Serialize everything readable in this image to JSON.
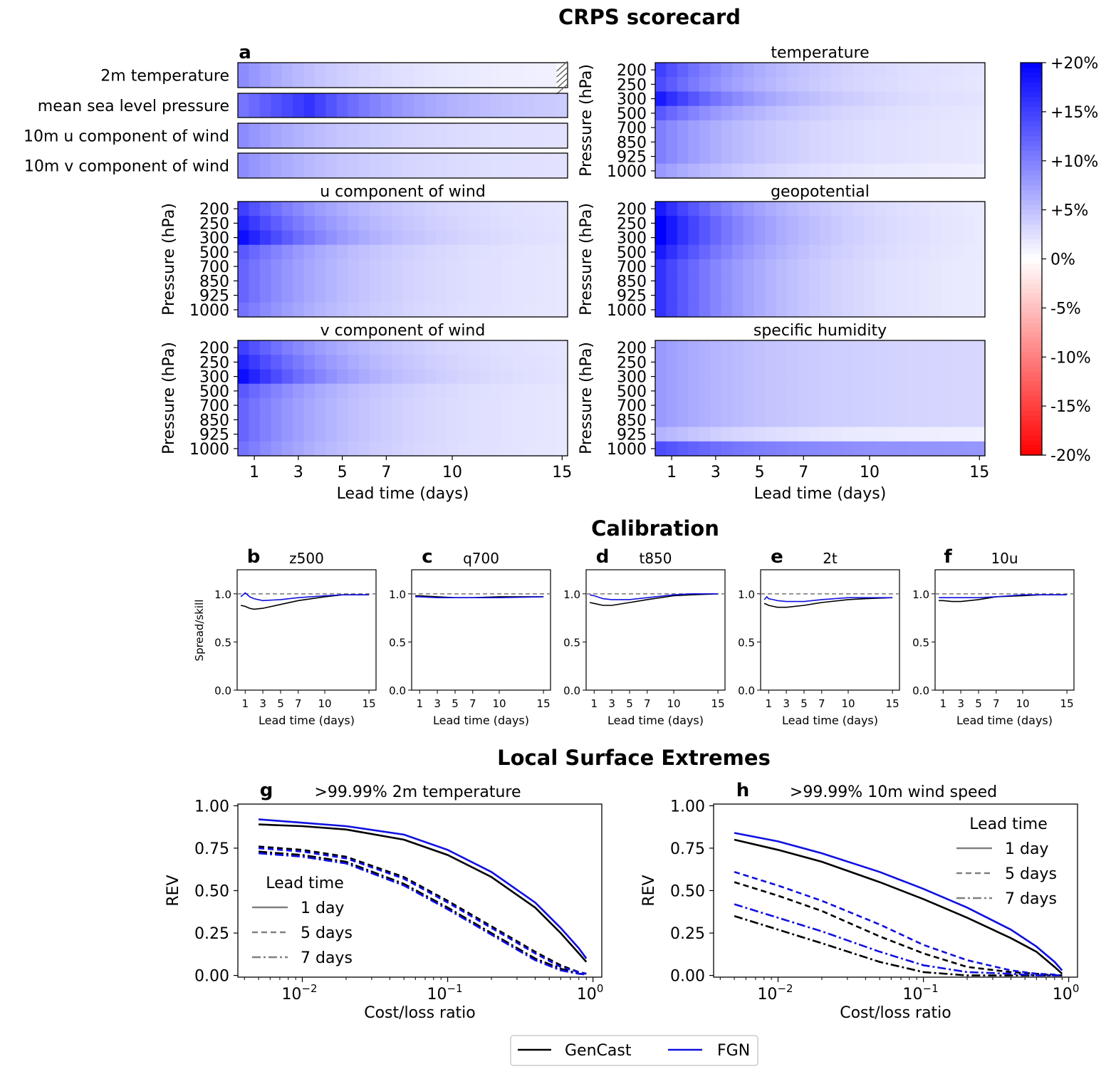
{
  "section_titles": {
    "scorecard": "CRPS scorecard",
    "calibration": "Calibration",
    "extremes": "Local Surface Extremes"
  },
  "panel_letters": {
    "a": "a",
    "b": "b",
    "c": "c",
    "d": "d",
    "e": "e",
    "f": "f",
    "g": "g",
    "h": "h"
  },
  "colors": {
    "genCast": "#000000",
    "fgn": "#1010e0",
    "positive": "#0000ff",
    "negative": "#ff0000",
    "reference": "#808080"
  },
  "chart_data": [
    {
      "type": "heatmap",
      "title": "CRPS scorecard",
      "panel": "a",
      "colorbar": {
        "min": -20,
        "max": 20,
        "ticks": [
          "+20%",
          "+15%",
          "+10%",
          "+5%",
          "0%",
          "-5%",
          "-10%",
          "-15%",
          "-20%"
        ],
        "tick_values": [
          20,
          15,
          10,
          5,
          0,
          -5,
          -10,
          -15,
          -20
        ]
      },
      "xlabel": "Lead time (days)",
      "xticks": [
        "1",
        "3",
        "5",
        "7",
        "10",
        "15"
      ],
      "xtick_values": [
        1,
        3,
        5,
        7,
        10,
        15
      ],
      "ylabel": "Pressure (hPa)",
      "levels": [
        "200",
        "250",
        "300",
        "500",
        "700",
        "850",
        "925",
        "1000"
      ],
      "surface": [
        {
          "label": "2m temperature",
          "start": 9,
          "end": 0.8,
          "hatched_last": true
        },
        {
          "label": "mean sea level pressure",
          "start": 10,
          "end": 3,
          "peak": 16,
          "peak_day": 3.5
        },
        {
          "label": "10m u component of wind",
          "start": 9,
          "end": 2
        },
        {
          "label": "10m v component of wind",
          "start": 9,
          "end": 2
        }
      ],
      "pressure": [
        {
          "title": "temperature",
          "start": [
            15,
            14,
            18,
            13,
            10,
            10,
            10,
            8
          ],
          "end": [
            1.5,
            1.5,
            1.5,
            1.5,
            1.5,
            1.5,
            1.5,
            1
          ]
        },
        {
          "title": "u component of wind",
          "start": [
            15,
            17,
            19,
            13,
            12,
            12,
            12,
            11
          ],
          "end": [
            1.5,
            1.5,
            1.5,
            1.5,
            1.5,
            1.5,
            1.5,
            1.5
          ]
        },
        {
          "title": "geopotential",
          "start": [
            18,
            20,
            20,
            18,
            16,
            16,
            16,
            16
          ],
          "end": [
            1,
            1,
            1,
            1,
            1,
            1,
            1,
            1
          ]
        },
        {
          "title": "v component of wind",
          "start": [
            15,
            17,
            19,
            13,
            12,
            12,
            12,
            11
          ],
          "end": [
            1.5,
            1.5,
            1.5,
            1.5,
            1.5,
            1.5,
            1.5,
            1.5
          ]
        },
        {
          "title": "specific humidity",
          "start": [
            8,
            8,
            8,
            8,
            8,
            8,
            6,
            14
          ],
          "end": [
            3,
            3,
            3,
            3,
            3,
            3,
            1,
            8
          ]
        }
      ]
    },
    {
      "type": "line",
      "title": "Calibration",
      "ylabel": "Spread/skill",
      "xlabel": "Lead time (days)",
      "ylim": [
        0,
        1.25
      ],
      "yticks": [
        "0.0",
        "0.5",
        "1.0"
      ],
      "ytick_values": [
        0,
        0.5,
        1.0
      ],
      "xticks": [
        "1",
        "3",
        "5",
        "7",
        "10",
        "15"
      ],
      "xtick_values": [
        1,
        3,
        5,
        7,
        10,
        15
      ],
      "reference": 1.0,
      "panels": [
        {
          "letter": "b",
          "title": "z500",
          "x": [
            0.5,
            1,
            1.5,
            2,
            3,
            5,
            7,
            10,
            12,
            15
          ],
          "gencast": [
            0.88,
            0.87,
            0.85,
            0.84,
            0.85,
            0.89,
            0.93,
            0.97,
            0.99,
            0.99
          ],
          "fgn": [
            0.97,
            1.01,
            0.97,
            0.95,
            0.93,
            0.94,
            0.96,
            0.98,
            0.99,
            0.99
          ]
        },
        {
          "letter": "c",
          "title": "q700",
          "x": [
            0.5,
            1,
            3,
            5,
            7,
            10,
            15
          ],
          "gencast": [
            0.98,
            0.98,
            0.97,
            0.96,
            0.96,
            0.97,
            0.97
          ],
          "fgn": [
            0.97,
            0.97,
            0.96,
            0.96,
            0.96,
            0.96,
            0.97
          ]
        },
        {
          "letter": "d",
          "title": "t850",
          "x": [
            0.5,
            1,
            2,
            3,
            5,
            7,
            10,
            12,
            15
          ],
          "gencast": [
            0.91,
            0.9,
            0.88,
            0.88,
            0.91,
            0.94,
            0.98,
            0.99,
            1.0
          ],
          "fgn": [
            0.99,
            0.98,
            0.95,
            0.94,
            0.94,
            0.96,
            0.99,
            1.0,
            1.0
          ]
        },
        {
          "letter": "e",
          "title": "2t",
          "x": [
            0.5,
            0.8,
            1,
            1.5,
            2,
            3,
            5,
            7,
            10,
            12,
            15
          ],
          "gencast": [
            0.9,
            0.89,
            0.88,
            0.87,
            0.86,
            0.86,
            0.88,
            0.91,
            0.94,
            0.95,
            0.96
          ],
          "fgn": [
            0.94,
            0.97,
            0.95,
            0.94,
            0.93,
            0.92,
            0.92,
            0.94,
            0.96,
            0.96,
            0.96
          ]
        },
        {
          "letter": "f",
          "title": "10u",
          "x": [
            0.5,
            1,
            2,
            3,
            5,
            7,
            10,
            12,
            15
          ],
          "gencast": [
            0.93,
            0.93,
            0.92,
            0.92,
            0.94,
            0.97,
            0.98,
            0.99,
            0.99
          ],
          "fgn": [
            0.96,
            0.96,
            0.96,
            0.96,
            0.96,
            0.97,
            0.99,
            0.99,
            0.99
          ]
        }
      ]
    },
    {
      "type": "line",
      "title": "Local Surface Extremes",
      "xscale": "log",
      "xlim": [
        0.0036,
        1.15
      ],
      "ylim": [
        -0.01,
        1.01
      ],
      "xlabel": "Cost/loss ratio",
      "ylabel": "REV",
      "yticks": [
        "0.00",
        "0.25",
        "0.50",
        "0.75",
        "1.00"
      ],
      "ytick_values": [
        0,
        0.25,
        0.5,
        0.75,
        1.0
      ],
      "xticks": [
        {
          "base": "10",
          "exp": "−2",
          "value": 0.01
        },
        {
          "base": "10",
          "exp": "−1",
          "value": 0.1
        },
        {
          "base": "10",
          "exp": "0",
          "value": 1
        }
      ],
      "legend_title": "Lead time",
      "legend_entries": [
        "1 day",
        "5 days",
        "7 days"
      ],
      "x": [
        0.005,
        0.01,
        0.02,
        0.05,
        0.1,
        0.2,
        0.4,
        0.6,
        0.8,
        0.9
      ],
      "panels": [
        {
          "letter": "g",
          "title": ">99.99% 2m temperature",
          "legend_position": "center-left",
          "series": [
            {
              "model": "GenCast",
              "lead": "1 day",
              "values": [
                0.89,
                0.88,
                0.86,
                0.8,
                0.71,
                0.58,
                0.4,
                0.25,
                0.13,
                0.08
              ]
            },
            {
              "model": "FGN",
              "lead": "1 day",
              "values": [
                0.92,
                0.9,
                0.88,
                0.83,
                0.74,
                0.61,
                0.43,
                0.28,
                0.16,
                0.1
              ]
            },
            {
              "model": "GenCast",
              "lead": "5 days",
              "values": [
                0.76,
                0.74,
                0.7,
                0.58,
                0.44,
                0.29,
                0.14,
                0.06,
                0.02,
                0.01
              ]
            },
            {
              "model": "FGN",
              "lead": "5 days",
              "values": [
                0.75,
                0.73,
                0.69,
                0.57,
                0.43,
                0.28,
                0.13,
                0.05,
                0.02,
                0.01
              ]
            },
            {
              "model": "GenCast",
              "lead": "7 days",
              "values": [
                0.73,
                0.71,
                0.67,
                0.54,
                0.4,
                0.25,
                0.1,
                0.04,
                0.01,
                0.005
              ]
            },
            {
              "model": "FGN",
              "lead": "7 days",
              "values": [
                0.72,
                0.7,
                0.66,
                0.53,
                0.39,
                0.24,
                0.09,
                0.03,
                0.01,
                0.005
              ]
            }
          ]
        },
        {
          "letter": "h",
          "title": ">99.99% 10m wind speed",
          "legend_position": "upper-right",
          "series": [
            {
              "model": "GenCast",
              "lead": "1 day",
              "values": [
                0.8,
                0.74,
                0.67,
                0.55,
                0.45,
                0.34,
                0.22,
                0.14,
                0.05,
                0.01
              ]
            },
            {
              "model": "FGN",
              "lead": "1 day",
              "values": [
                0.84,
                0.79,
                0.72,
                0.61,
                0.51,
                0.4,
                0.27,
                0.17,
                0.08,
                0.03
              ]
            },
            {
              "model": "GenCast",
              "lead": "5 days",
              "values": [
                0.55,
                0.47,
                0.38,
                0.23,
                0.13,
                0.05,
                0.02,
                0.01,
                0.0,
                0.0
              ]
            },
            {
              "model": "FGN",
              "lead": "5 days",
              "values": [
                0.61,
                0.53,
                0.44,
                0.3,
                0.18,
                0.09,
                0.03,
                0.01,
                0.005,
                0.0
              ]
            },
            {
              "model": "GenCast",
              "lead": "7 days",
              "values": [
                0.35,
                0.27,
                0.19,
                0.08,
                0.02,
                0.0,
                0.0,
                0.0,
                0.0,
                0.0
              ]
            },
            {
              "model": "FGN",
              "lead": "7 days",
              "values": [
                0.42,
                0.34,
                0.26,
                0.14,
                0.06,
                0.02,
                0.01,
                0.0,
                0.0,
                0.0
              ]
            }
          ]
        }
      ],
      "model_legend": [
        "GenCast",
        "FGN"
      ]
    }
  ]
}
